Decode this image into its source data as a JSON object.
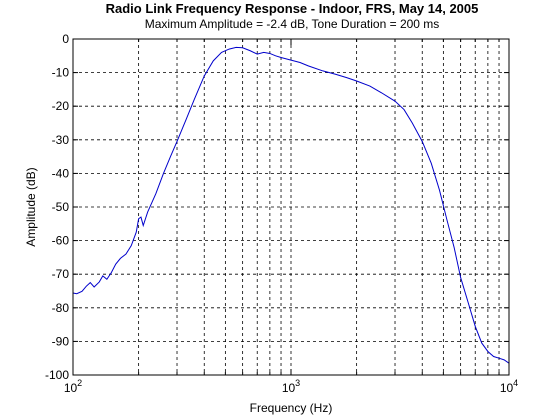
{
  "chart_data": {
    "type": "line",
    "title": "Radio Link Frequency Response - Indoor, FRS, May 14, 2005",
    "subtitle": "Maximum Amplitude = -2.4 dB, Tone Duration = 200 ms",
    "xlabel": "Frequency (Hz)",
    "ylabel": "Amplitude (dB)",
    "x_scale": "log",
    "xlim": [
      100,
      10000
    ],
    "ylim": [
      -100,
      0
    ],
    "x_ticks": [
      {
        "value": 100,
        "base": "10",
        "exp": "2"
      },
      {
        "value": 1000,
        "base": "10",
        "exp": "3"
      },
      {
        "value": 10000,
        "base": "10",
        "exp": "4"
      }
    ],
    "y_ticks": [
      0,
      -10,
      -20,
      -30,
      -40,
      -50,
      -60,
      -70,
      -80,
      -90,
      -100
    ],
    "y_tick_labels": [
      "0",
      "-10",
      "-20",
      "-30",
      "-40",
      "-50",
      "-60",
      "-70",
      "-80",
      "-90",
      "-100"
    ],
    "grid": true,
    "series_color": "#0000cc",
    "series": [
      {
        "x": [
          100,
          104,
          110,
          115,
          120,
          125,
          132,
          137,
          143,
          150,
          157,
          165,
          175,
          185,
          195,
          200,
          205,
          210,
          220,
          240,
          260,
          280,
          300,
          330,
          360,
          400,
          440,
          480,
          520,
          560,
          600,
          650,
          700,
          750,
          800,
          850,
          900,
          1000,
          1100,
          1200,
          1400,
          1600,
          1800,
          2000,
          2300,
          2600,
          3000,
          3300,
          3600,
          4000,
          4400,
          4800,
          5200,
          5600,
          6000,
          6500,
          7000,
          7500,
          8000,
          8500,
          9000,
          9500,
          10000
        ],
        "y": [
          -75.6,
          -75.8,
          -75.1,
          -73.6,
          -72.5,
          -73.8,
          -72.3,
          -70.5,
          -71.5,
          -69.5,
          -67.0,
          -65.3,
          -64.0,
          -61.5,
          -57.5,
          -53.5,
          -53.0,
          -55.5,
          -51.5,
          -46.0,
          -40.0,
          -35.0,
          -30.5,
          -24.0,
          -18.0,
          -11.0,
          -6.5,
          -4.0,
          -3.0,
          -2.5,
          -2.6,
          -3.5,
          -4.5,
          -4.0,
          -4.3,
          -5.0,
          -5.5,
          -6.3,
          -7.0,
          -8.0,
          -9.5,
          -10.5,
          -11.5,
          -12.5,
          -14.0,
          -16.0,
          -18.5,
          -21.0,
          -25.0,
          -30.5,
          -37.0,
          -45.0,
          -54.0,
          -62.0,
          -71.0,
          -78.5,
          -85.5,
          -90.5,
          -93.0,
          -94.5,
          -95.0,
          -95.5,
          -96.5
        ]
      }
    ]
  }
}
